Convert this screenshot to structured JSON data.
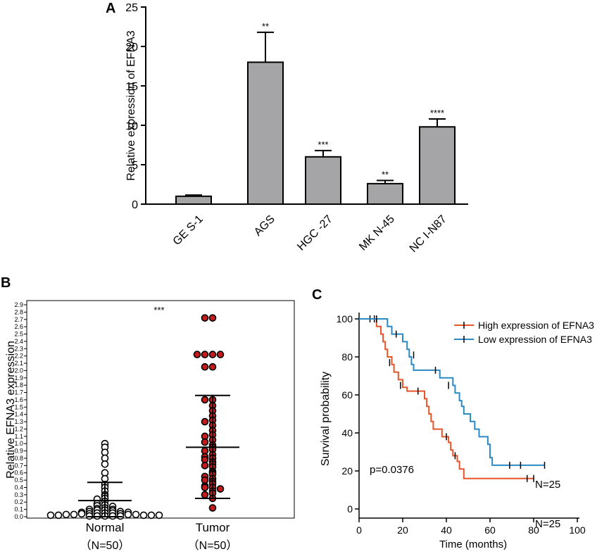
{
  "panels": {
    "a": "A",
    "b": "B",
    "c": "C"
  },
  "colors": {
    "bar": "#a5a5a8",
    "dot_fill": "#c41c1c",
    "high": "#e8542a",
    "low": "#2b89c4",
    "axis": "#000000"
  },
  "chart_data": [
    {
      "type": "bar",
      "panel": "A",
      "title": "",
      "xlabel": "",
      "ylabel": "Relative expression of EFNA3",
      "categories": [
        "GES-1",
        "AGS",
        "HGC-27",
        "MKN-45",
        "NCI-N87"
      ],
      "category_labels": [
        "GE S-1",
        "AGS",
        "HGC -27",
        "MK N-45",
        "NC I-N87"
      ],
      "values": [
        1.0,
        18.0,
        6.0,
        2.6,
        9.8
      ],
      "errors": [
        0.15,
        3.8,
        0.8,
        0.4,
        1.0
      ],
      "significance": [
        "",
        "**",
        "***",
        "**",
        "****"
      ],
      "ylim": [
        0,
        25
      ],
      "yticks": [
        "0",
        "5",
        "10",
        "15",
        "20",
        "25"
      ]
    },
    {
      "type": "scatter",
      "panel": "B",
      "title": "",
      "ylabel": "Relative EFNA3 expression",
      "significance": "***",
      "ylim": [
        0,
        2.9
      ],
      "yticks": [
        "0.0",
        "0.1",
        "0.2",
        "0.3",
        "0.4",
        "0.5",
        "0.6",
        "0.7",
        "0.8",
        "0.9",
        "1.0",
        "1.1",
        "1.2",
        "1.3",
        "1.4",
        "1.5",
        "1.6",
        "1.7",
        "1.8",
        "1.9",
        "2.0",
        "2.1",
        "2.2",
        "2.3",
        "2.4",
        "2.5",
        "2.6",
        "2.7",
        "2.8",
        "2.9"
      ],
      "groups": [
        {
          "name": "Normal",
          "n_label": "（N=50）",
          "mean": 0.22,
          "sd_upper": 0.47,
          "sd_lower": 0.0,
          "values": [
            1.0,
            0.95,
            0.88,
            0.8,
            0.72,
            0.6,
            0.52,
            0.44,
            0.4,
            0.35,
            0.3,
            0.28,
            0.25,
            0.24,
            0.21,
            0.18,
            0.16,
            0.15,
            0.14,
            0.12,
            0.11,
            0.1,
            0.1,
            0.09,
            0.09,
            0.08,
            0.07,
            0.07,
            0.06,
            0.06,
            0.05,
            0.05,
            0.05,
            0.04,
            0.04,
            0.04,
            0.03,
            0.03,
            0.03,
            0.03,
            0.02,
            0.02,
            0.02,
            0.02,
            0.02,
            0.01,
            0.01,
            0.01,
            0.01,
            0.01
          ]
        },
        {
          "name": "Tumor",
          "n_label": "（N=50）",
          "mean": 0.95,
          "sd_upper": 1.66,
          "sd_lower": 0.25,
          "values": [
            2.72,
            2.72,
            2.22,
            2.22,
            2.22,
            2.22,
            2.05,
            2.05,
            1.6,
            1.6,
            1.52,
            1.45,
            1.38,
            1.32,
            1.3,
            1.25,
            1.18,
            1.12,
            1.1,
            1.05,
            1.02,
            0.98,
            0.95,
            0.92,
            0.9,
            0.85,
            0.82,
            0.8,
            0.78,
            0.75,
            0.72,
            0.7,
            0.68,
            0.62,
            0.6,
            0.58,
            0.55,
            0.52,
            0.5,
            0.48,
            0.45,
            0.42,
            0.4,
            0.4,
            0.38,
            0.35,
            0.32,
            0.3,
            0.25,
            0.12
          ]
        }
      ]
    },
    {
      "type": "line",
      "subtype": "kaplan-meier",
      "panel": "C",
      "title": "",
      "xlabel": "Time (months)",
      "ylabel": "Survival probability",
      "xlim": [
        0,
        100
      ],
      "ylim": [
        0,
        100
      ],
      "xticks": [
        "0",
        "20",
        "40",
        "60",
        "80",
        "100"
      ],
      "yticks": [
        "0",
        "20",
        "40",
        "60",
        "80",
        "100"
      ],
      "p_value": "p=0.0376",
      "legend_position": "top-right",
      "series": [
        {
          "name": "High expression of EFNA3",
          "color": "#e8542a",
          "n_label": "N=25",
          "steps": [
            [
              0,
              100
            ],
            [
              8,
              96
            ],
            [
              10,
              92
            ],
            [
              11,
              88
            ],
            [
              12,
              84
            ],
            [
              13,
              80
            ],
            [
              15,
              76
            ],
            [
              16,
              72
            ],
            [
              18,
              68
            ],
            [
              20,
              64
            ],
            [
              22,
              62
            ],
            [
              30,
              58
            ],
            [
              31,
              54
            ],
            [
              32,
              50
            ],
            [
              33,
              46
            ],
            [
              34,
              42
            ],
            [
              38,
              38
            ],
            [
              41,
              35
            ],
            [
              42,
              31
            ],
            [
              43,
              28
            ],
            [
              45,
              25
            ],
            [
              46,
              21
            ],
            [
              48,
              16
            ],
            [
              80,
              16
            ]
          ],
          "censored": [
            [
              5,
              100
            ],
            [
              7,
              100
            ],
            [
              14,
              77
            ],
            [
              19,
              65
            ],
            [
              27,
              62
            ],
            [
              40,
              38
            ],
            [
              44,
              28
            ],
            [
              77,
              16
            ],
            [
              80,
              16
            ]
          ]
        },
        {
          "name": "Low expression of EFNA3",
          "color": "#2b89c4",
          "n_label": "N=25",
          "steps": [
            [
              0,
              100
            ],
            [
              13,
              96
            ],
            [
              15,
              92
            ],
            [
              20,
              88
            ],
            [
              22,
              84
            ],
            [
              23,
              80
            ],
            [
              24,
              76
            ],
            [
              25,
              73
            ],
            [
              37,
              69
            ],
            [
              43,
              65
            ],
            [
              44,
              61
            ],
            [
              46,
              57
            ],
            [
              47,
              54
            ],
            [
              48,
              50
            ],
            [
              51,
              46
            ],
            [
              53,
              42
            ],
            [
              55,
              38
            ],
            [
              59,
              34
            ],
            [
              60,
              27
            ],
            [
              61,
              23
            ],
            [
              85,
              23
            ]
          ],
          "censored": [
            [
              8,
              100
            ],
            [
              17,
              92
            ],
            [
              25,
              81
            ],
            [
              35,
              73
            ],
            [
              41,
              65
            ],
            [
              69,
              23
            ],
            [
              74,
              23
            ],
            [
              85,
              23
            ]
          ]
        }
      ]
    }
  ]
}
